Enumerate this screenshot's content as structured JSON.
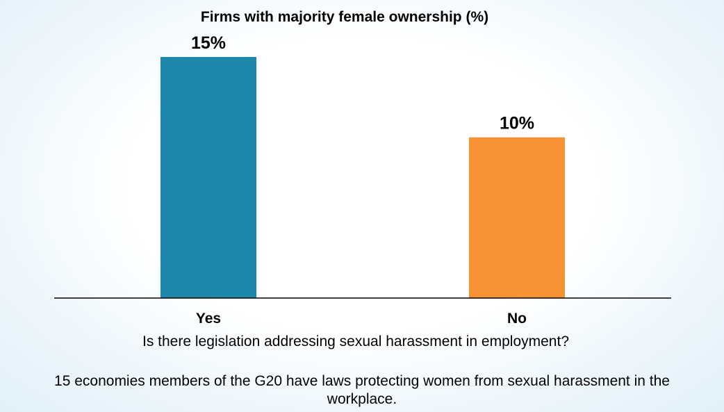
{
  "chart_data": {
    "type": "bar",
    "title": "Firms with majority female ownership (%)",
    "xlabel": "Is there legislation addressing sexual harassment in employment?",
    "ylabel": "",
    "categories": [
      "Yes",
      "No"
    ],
    "values": [
      15,
      10
    ],
    "data_labels": [
      "15%",
      "10%"
    ],
    "ylim": [
      0,
      15
    ],
    "grid": false,
    "colors": [
      "#1f87aa",
      "#f69234"
    ]
  },
  "caption": "15 economies members of the G20 have laws protecting women from sexual harassment in the workplace."
}
